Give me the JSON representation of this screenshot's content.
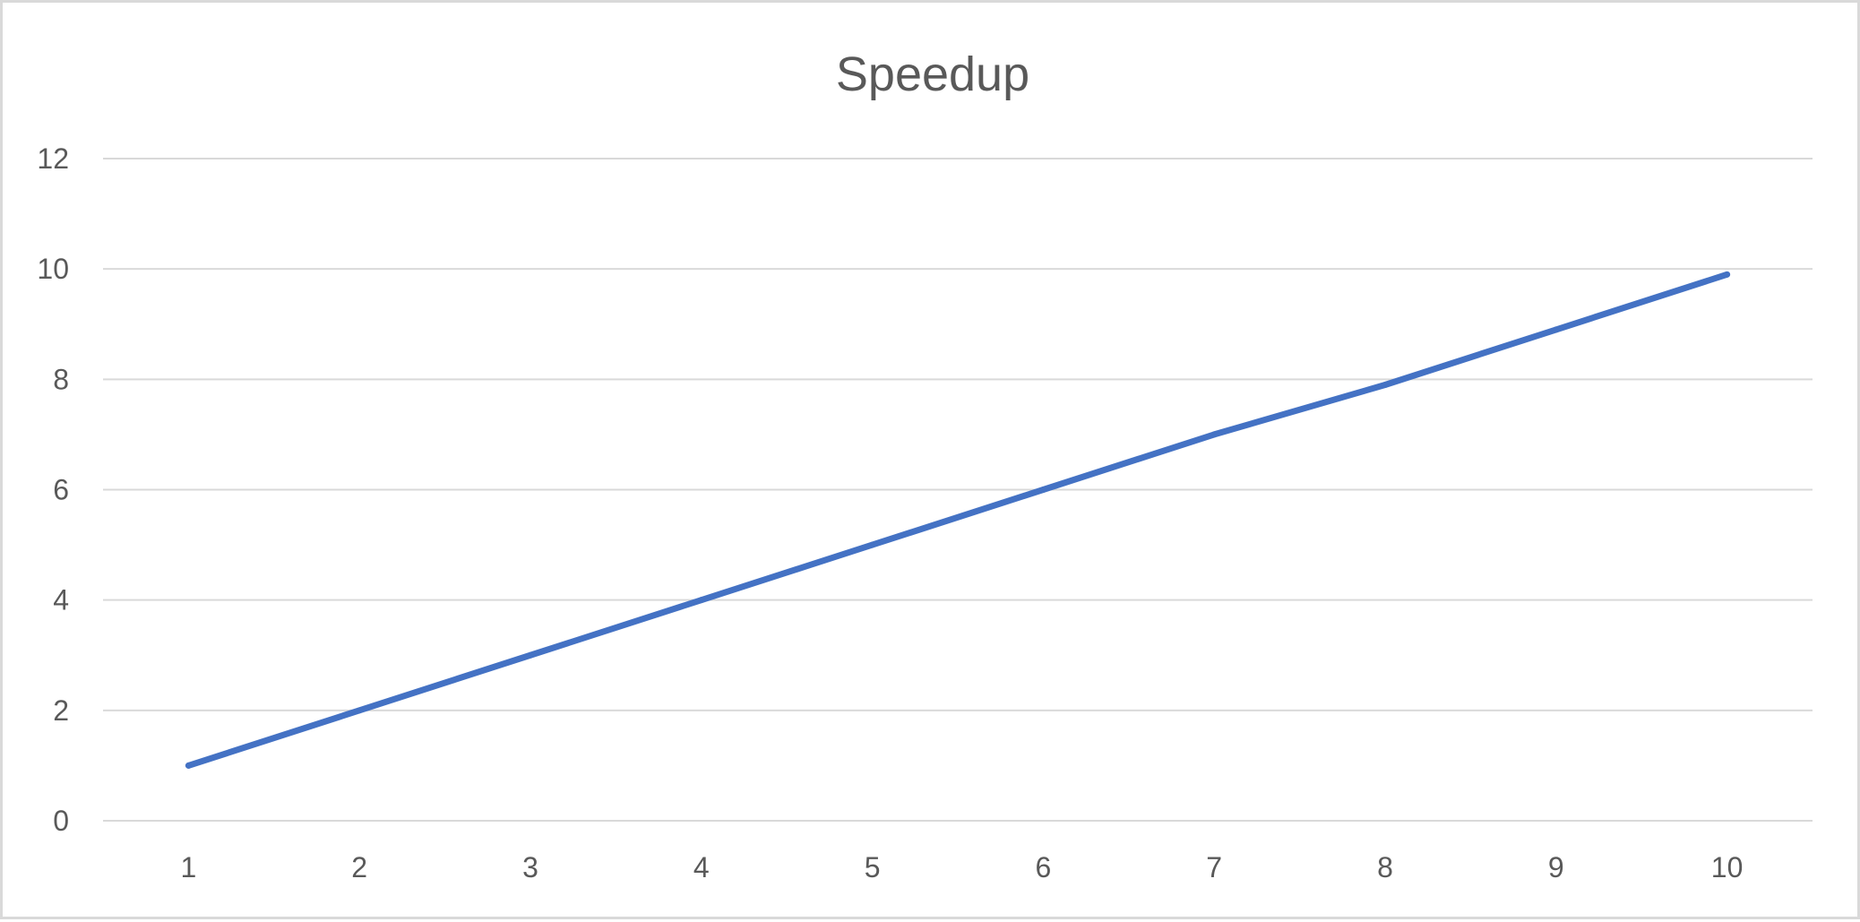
{
  "chart_data": {
    "type": "line",
    "title": "Speedup",
    "xlabel": "",
    "ylabel": "",
    "categories": [
      "1",
      "2",
      "3",
      "4",
      "5",
      "6",
      "7",
      "8",
      "9",
      "10"
    ],
    "series": [
      {
        "values": [
          1,
          2,
          3,
          4,
          5,
          6,
          7,
          7.9,
          8.9,
          9.9
        ],
        "color": "#4472C4"
      }
    ],
    "ylim": [
      0,
      12
    ],
    "yticks": [
      0,
      2,
      4,
      6,
      8,
      10,
      12
    ],
    "grid": true,
    "legend": "none"
  }
}
